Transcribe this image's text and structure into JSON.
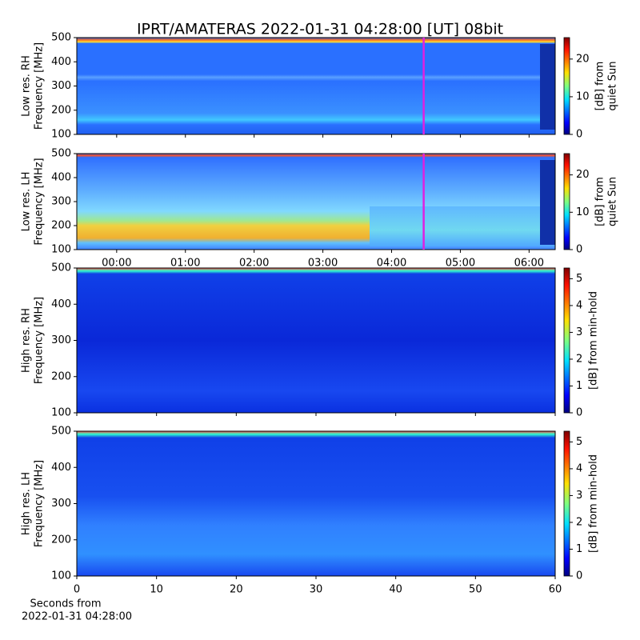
{
  "title": "IPRT/AMATERAS 2022-01-31 04:28:00 [UT]   08bit",
  "chart_data": [
    {
      "type": "heatmap",
      "ylabel": [
        "Low res. RH",
        "Frequency [MHz]"
      ],
      "ylim": [
        100,
        500
      ],
      "yticks": [
        100,
        200,
        300,
        400,
        500
      ],
      "xlim": [
        -0.58,
        6.38
      ],
      "cursor_x": 4.4667,
      "cursor_color": "#e020e0",
      "clim": [
        0,
        25.7
      ],
      "cticks": [
        0,
        10,
        20
      ],
      "clabel": [
        "[dB] from",
        "quiet Sun"
      ]
    },
    {
      "type": "heatmap",
      "ylabel": [
        "Low res. LH",
        "Frequency [MHz]"
      ],
      "ylim": [
        100,
        500
      ],
      "yticks": [
        100,
        200,
        300,
        400,
        500
      ],
      "xlim": [
        -0.58,
        6.38
      ],
      "cursor_x": 4.4667,
      "cursor_color": "#e020e0",
      "xticks": [
        {
          "value": 0,
          "label": "00:00"
        },
        {
          "value": 1,
          "label": "01:00"
        },
        {
          "value": 2,
          "label": "02:00"
        },
        {
          "value": 3,
          "label": "03:00"
        },
        {
          "value": 4,
          "label": "04:00"
        },
        {
          "value": 5,
          "label": "05:00"
        },
        {
          "value": 6,
          "label": "06:00"
        }
      ],
      "clim": [
        0,
        25.7
      ],
      "cticks": [
        0,
        10,
        20
      ],
      "clabel": [
        "[dB] from",
        "quiet Sun"
      ]
    },
    {
      "type": "heatmap",
      "ylabel": [
        "High res. RH",
        "Frequency [MHz]"
      ],
      "ylim": [
        100,
        500
      ],
      "yticks": [
        100,
        200,
        300,
        400,
        500
      ],
      "xlim": [
        0,
        60
      ],
      "clim": [
        0,
        5.4
      ],
      "cticks": [
        0,
        1,
        2,
        3,
        4,
        5
      ],
      "clabel": [
        "[dB] from min-hold"
      ]
    },
    {
      "type": "heatmap",
      "ylabel": [
        "High res. LH",
        "Frequency [MHz]"
      ],
      "ylim": [
        100,
        500
      ],
      "yticks": [
        100,
        200,
        300,
        400,
        500
      ],
      "xlim": [
        0,
        60
      ],
      "xticks": [
        0,
        10,
        20,
        30,
        40,
        50,
        60
      ],
      "xlabel": [
        "Seconds from",
        "2022-01-31 04:28:00"
      ],
      "clim": [
        0,
        5.4
      ],
      "cticks": [
        0,
        1,
        2,
        3,
        4,
        5
      ],
      "clabel": [
        "[dB] from min-hold"
      ]
    }
  ]
}
